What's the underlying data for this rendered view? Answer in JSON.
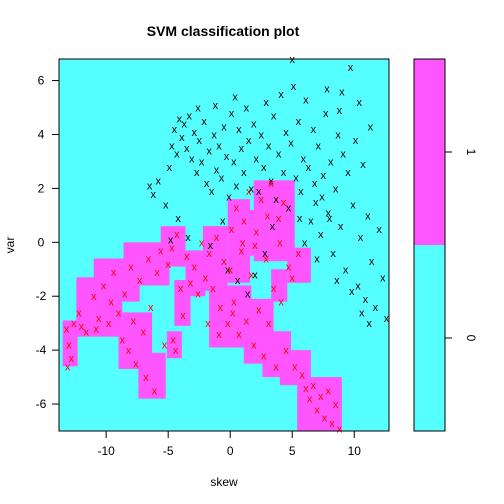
{
  "chart_data": {
    "type": "scatter",
    "title": "SVM classification plot",
    "xlabel": "skew",
    "ylabel": "var",
    "xlim": [
      -13.8,
      12.8
    ],
    "ylim": [
      -7.0,
      6.8
    ],
    "xticks": [
      -10,
      -5,
      0,
      5,
      10
    ],
    "yticks": [
      -6,
      -4,
      -2,
      0,
      2,
      4,
      6
    ],
    "grid": false,
    "legend_position": "right",
    "background_class": "0",
    "markers": {
      "support_vector": "x",
      "other": "o"
    },
    "regions": [
      {
        "class": "1",
        "color": "#ff55ff",
        "x": [
          -13.5,
          -12.3
        ],
        "y": [
          -4.6,
          -2.9
        ]
      },
      {
        "class": "1",
        "color": "#ff55ff",
        "x": [
          -12.4,
          -8.7
        ],
        "y": [
          -3.5,
          -1.3
        ]
      },
      {
        "class": "1",
        "color": "#ff55ff",
        "x": [
          -11.0,
          -7.3
        ],
        "y": [
          -2.2,
          -0.6
        ]
      },
      {
        "class": "1",
        "color": "#ff55ff",
        "x": [
          -9.0,
          -6.3
        ],
        "y": [
          -4.7,
          -2.6
        ]
      },
      {
        "class": "1",
        "color": "#ff55ff",
        "x": [
          -7.4,
          -5.2
        ],
        "y": [
          -5.8,
          -4.1
        ]
      },
      {
        "class": "1",
        "color": "#ff55ff",
        "x": [
          -8.6,
          -4.9
        ],
        "y": [
          -1.6,
          0.0
        ]
      },
      {
        "class": "1",
        "color": "#ff55ff",
        "x": [
          -5.6,
          -3.6
        ],
        "y": [
          -0.9,
          0.6
        ]
      },
      {
        "class": "1",
        "color": "#ff55ff",
        "x": [
          -4.5,
          -3.2
        ],
        "y": [
          -3.1,
          -1.4
        ]
      },
      {
        "class": "1",
        "color": "#ff55ff",
        "x": [
          -3.6,
          -2.0
        ],
        "y": [
          -2.0,
          -0.3
        ]
      },
      {
        "class": "1",
        "color": "#ff55ff",
        "x": [
          -2.2,
          -0.2
        ],
        "y": [
          -1.8,
          0.6
        ]
      },
      {
        "class": "1",
        "color": "#ff55ff",
        "x": [
          -0.2,
          1.6
        ],
        "y": [
          -1.5,
          1.6
        ]
      },
      {
        "class": "1",
        "color": "#ff55ff",
        "x": [
          0.0,
          2.2
        ],
        "y": [
          -0.5,
          1.2
        ]
      },
      {
        "class": "1",
        "color": "#ff55ff",
        "x": [
          1.9,
          5.2
        ],
        "y": [
          -0.7,
          2.3
        ]
      },
      {
        "class": "1",
        "color": "#ff55ff",
        "x": [
          -1.7,
          1.7
        ],
        "y": [
          -3.9,
          -1.6
        ]
      },
      {
        "class": "1",
        "color": "#ff55ff",
        "x": [
          1.1,
          3.5
        ],
        "y": [
          -4.5,
          -2.1
        ]
      },
      {
        "class": "1",
        "color": "#ff55ff",
        "x": [
          2.6,
          4.9
        ],
        "y": [
          -5.0,
          -3.3
        ]
      },
      {
        "class": "1",
        "color": "#ff55ff",
        "x": [
          4.0,
          6.5
        ],
        "y": [
          -5.3,
          -4.0
        ]
      },
      {
        "class": "1",
        "color": "#ff55ff",
        "x": [
          5.4,
          9.0
        ],
        "y": [
          -7.0,
          -5.0
        ]
      },
      {
        "class": "1",
        "color": "#ff55ff",
        "x": [
          4.6,
          6.5
        ],
        "y": [
          -1.5,
          -0.2
        ]
      },
      {
        "class": "1",
        "color": "#ff55ff",
        "x": [
          3.3,
          4.6
        ],
        "y": [
          -2.2,
          -1.0
        ]
      },
      {
        "class": "1",
        "color": "#ff55ff",
        "x": [
          -5.1,
          -3.9
        ],
        "y": [
          -4.3,
          -3.3
        ]
      }
    ],
    "series": [
      {
        "class": "0",
        "color": "#000000",
        "points": [
          [
            -6.5,
            2.1
          ],
          [
            -6.2,
            1.8
          ],
          [
            -5.8,
            2.3
          ],
          [
            -5.2,
            1.4
          ],
          [
            -4.9,
            2.8
          ],
          [
            -4.7,
            3.6
          ],
          [
            -4.5,
            4.2
          ],
          [
            -4.3,
            3.3
          ],
          [
            -4.1,
            4.6
          ],
          [
            -3.9,
            3.9
          ],
          [
            -3.7,
            4.4
          ],
          [
            -3.5,
            3.5
          ],
          [
            -3.3,
            4.7
          ],
          [
            -3.1,
            3.1
          ],
          [
            -2.9,
            4.1
          ],
          [
            -2.7,
            2.6
          ],
          [
            -2.5,
            3.8
          ],
          [
            -2.3,
            3.0
          ],
          [
            -2.1,
            4.5
          ],
          [
            -1.9,
            2.2
          ],
          [
            -1.7,
            3.4
          ],
          [
            -1.5,
            1.9
          ],
          [
            -1.3,
            4.0
          ],
          [
            -1.1,
            2.7
          ],
          [
            -0.9,
            3.6
          ],
          [
            -0.7,
            2.4
          ],
          [
            -0.5,
            4.3
          ],
          [
            -0.3,
            3.2
          ],
          [
            -0.1,
            1.7
          ],
          [
            0.1,
            4.8
          ],
          [
            0.3,
            3.0
          ],
          [
            0.5,
            2.1
          ],
          [
            0.7,
            4.2
          ],
          [
            0.9,
            3.5
          ],
          [
            1.1,
            2.6
          ],
          [
            1.3,
            5.0
          ],
          [
            1.5,
            3.8
          ],
          [
            1.7,
            2.0
          ],
          [
            1.9,
            4.4
          ],
          [
            2.1,
            3.1
          ],
          [
            2.3,
            1.9
          ],
          [
            2.5,
            4.0
          ],
          [
            2.7,
            2.8
          ],
          [
            2.9,
            5.2
          ],
          [
            3.1,
            3.6
          ],
          [
            3.3,
            2.3
          ],
          [
            3.5,
            4.7
          ],
          [
            3.7,
            1.6
          ],
          [
            3.9,
            3.3
          ],
          [
            4.1,
            5.5
          ],
          [
            4.3,
            2.6
          ],
          [
            4.5,
            4.1
          ],
          [
            4.7,
            1.3
          ],
          [
            4.9,
            3.7
          ],
          [
            5.1,
            5.8
          ],
          [
            5.3,
            2.4
          ],
          [
            5.5,
            4.5
          ],
          [
            5.7,
            1.9
          ],
          [
            5.9,
            3.1
          ],
          [
            6.1,
            5.3
          ],
          [
            6.3,
            2.8
          ],
          [
            6.5,
            0.8
          ],
          [
            6.7,
            4.2
          ],
          [
            6.9,
            1.5
          ],
          [
            7.1,
            3.6
          ],
          [
            7.3,
            0.3
          ],
          [
            7.5,
            2.5
          ],
          [
            7.7,
            4.8
          ],
          [
            7.9,
            1.1
          ],
          [
            8.1,
            3.0
          ],
          [
            8.3,
            -0.4
          ],
          [
            8.5,
            2.0
          ],
          [
            8.7,
            4.0
          ],
          [
            8.9,
            0.6
          ],
          [
            9.1,
            3.3
          ],
          [
            9.3,
            -1.0
          ],
          [
            9.5,
            2.6
          ],
          [
            9.7,
            6.5
          ],
          [
            9.9,
            1.4
          ],
          [
            10.1,
            3.8
          ],
          [
            10.3,
            -1.6
          ],
          [
            10.5,
            0.2
          ],
          [
            10.7,
            2.9
          ],
          [
            10.9,
            -2.1
          ],
          [
            11.1,
            1.0
          ],
          [
            11.4,
            -0.7
          ],
          [
            11.7,
            -2.4
          ],
          [
            12.0,
            0.5
          ],
          [
            12.3,
            -1.3
          ],
          [
            12.6,
            -2.8
          ],
          [
            6.0,
            0.0
          ],
          [
            7.0,
            -0.6
          ],
          [
            8.0,
            0.9
          ],
          [
            6.8,
            2.2
          ],
          [
            5.6,
            0.9
          ],
          [
            9.8,
            -1.8
          ],
          [
            10.6,
            -2.6
          ],
          [
            11.2,
            -3.0
          ],
          [
            8.6,
            -1.4
          ],
          [
            7.4,
            1.7
          ],
          [
            -0.2,
            -1.0
          ],
          [
            0.6,
            -1.4
          ],
          [
            1.4,
            -1.9
          ],
          [
            2.0,
            -1.2
          ],
          [
            -4.8,
            0.1
          ],
          [
            -3.4,
            0.2
          ],
          [
            -1.6,
            -0.1
          ],
          [
            2.8,
            -0.4
          ],
          [
            3.4,
            0.6
          ],
          [
            -4.2,
            0.9
          ],
          [
            -0.6,
            0.8
          ],
          [
            9.0,
            5.6
          ],
          [
            10.4,
            5.2
          ],
          [
            7.8,
            5.7
          ],
          [
            5.0,
            6.8
          ],
          [
            8.8,
            4.9
          ],
          [
            11.3,
            4.3
          ],
          [
            -2.6,
            5.0
          ],
          [
            -1.2,
            5.1
          ],
          [
            0.4,
            5.4
          ]
        ]
      },
      {
        "class": "1",
        "color": "#ff0000",
        "points": [
          [
            -13.2,
            -3.2
          ],
          [
            -13.0,
            -3.8
          ],
          [
            -12.8,
            -4.3
          ],
          [
            -12.6,
            -3.0
          ],
          [
            -13.1,
            -4.6
          ],
          [
            -12.2,
            -2.6
          ],
          [
            -11.6,
            -3.3
          ],
          [
            -11.0,
            -2.0
          ],
          [
            -10.6,
            -2.8
          ],
          [
            -10.2,
            -1.6
          ],
          [
            -9.8,
            -3.0
          ],
          [
            -9.6,
            -2.2
          ],
          [
            -9.4,
            -1.1
          ],
          [
            -9.0,
            -2.6
          ],
          [
            -8.7,
            -3.6
          ],
          [
            -8.5,
            -1.9
          ],
          [
            -8.2,
            -4.0
          ],
          [
            -8.0,
            -0.9
          ],
          [
            -7.8,
            -2.9
          ],
          [
            -7.6,
            -4.5
          ],
          [
            -7.3,
            -1.4
          ],
          [
            -7.0,
            -3.3
          ],
          [
            -6.8,
            -5.0
          ],
          [
            -6.6,
            -0.6
          ],
          [
            -6.4,
            -2.4
          ],
          [
            -6.1,
            -5.5
          ],
          [
            -5.9,
            -1.1
          ],
          [
            -5.6,
            -0.3
          ],
          [
            -5.3,
            -3.8
          ],
          [
            -5.0,
            -0.8
          ],
          [
            -4.7,
            -0.2
          ],
          [
            -4.3,
            0.3
          ],
          [
            -4.0,
            -1.7
          ],
          [
            -3.8,
            -2.7
          ],
          [
            -3.5,
            -0.5
          ],
          [
            -3.2,
            -1.5
          ],
          [
            -2.9,
            -0.9
          ],
          [
            -2.6,
            -1.9
          ],
          [
            -2.3,
            0.0
          ],
          [
            -2.0,
            -1.3
          ],
          [
            -1.7,
            -0.4
          ],
          [
            -1.4,
            -1.7
          ],
          [
            -1.1,
            0.2
          ],
          [
            -0.8,
            -2.4
          ],
          [
            -0.5,
            -0.7
          ],
          [
            -0.2,
            -3.0
          ],
          [
            0.1,
            0.5
          ],
          [
            0.3,
            -2.2
          ],
          [
            0.5,
            1.3
          ],
          [
            0.7,
            -3.4
          ],
          [
            0.9,
            -0.3
          ],
          [
            1.1,
            0.8
          ],
          [
            1.3,
            -2.9
          ],
          [
            1.5,
            1.9
          ],
          [
            1.7,
            -1.2
          ],
          [
            1.9,
            -3.8
          ],
          [
            2.1,
            0.4
          ],
          [
            2.3,
            -2.5
          ],
          [
            2.5,
            1.6
          ],
          [
            2.7,
            -4.2
          ],
          [
            2.9,
            -0.6
          ],
          [
            3.1,
            -3.0
          ],
          [
            3.3,
            2.2
          ],
          [
            3.5,
            -1.7
          ],
          [
            3.7,
            -4.6
          ],
          [
            3.9,
            0.9
          ],
          [
            4.1,
            -2.2
          ],
          [
            4.3,
            1.5
          ],
          [
            4.5,
            -4.0
          ],
          [
            4.7,
            -0.9
          ],
          [
            5.0,
            -1.3
          ],
          [
            5.2,
            -4.6
          ],
          [
            5.5,
            -0.4
          ],
          [
            5.8,
            -4.9
          ],
          [
            6.1,
            -5.4
          ],
          [
            6.4,
            -5.8
          ],
          [
            6.7,
            -5.3
          ],
          [
            7.0,
            -6.2
          ],
          [
            7.3,
            -5.7
          ],
          [
            7.6,
            -6.5
          ],
          [
            7.9,
            -5.5
          ],
          [
            8.2,
            -6.7
          ],
          [
            8.5,
            -6.0
          ],
          [
            8.8,
            -6.9
          ],
          [
            -4.6,
            -3.6
          ],
          [
            -4.4,
            -4.0
          ],
          [
            -12.0,
            -3.1
          ],
          [
            -10.8,
            -3.2
          ],
          [
            0.0,
            -1.0
          ],
          [
            1.0,
            0.0
          ],
          [
            2.0,
            -0.1
          ],
          [
            -1.8,
            -3.0
          ],
          [
            -0.9,
            -3.4
          ],
          [
            3.0,
            1.0
          ],
          [
            4.0,
            0.0
          ],
          [
            0.2,
            -2.6
          ]
        ]
      }
    ]
  },
  "legend": {
    "levels": [
      {
        "label": "1",
        "color": "#ff55ff"
      },
      {
        "label": "0",
        "color": "#55ffff"
      }
    ]
  }
}
